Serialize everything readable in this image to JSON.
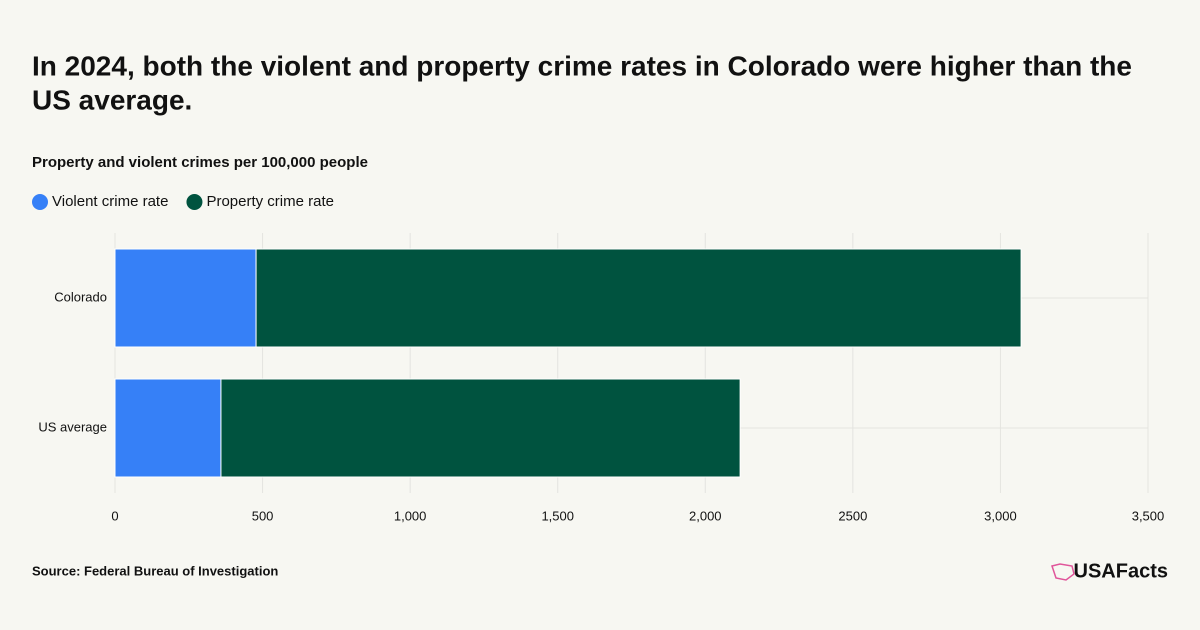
{
  "chart_data": {
    "type": "stacked-barh",
    "title": [
      "In 2024, both the violent and property crime rates in Colorado were higher than the",
      "US average."
    ],
    "subtitle": "Property and violent crimes per 100,000 people",
    "categories": [
      "Colorado",
      "US average"
    ],
    "series": [
      {
        "name": "Violent crime rate",
        "color": "#3680f7",
        "values": [
          478,
          359
        ]
      },
      {
        "name": "Property crime rate",
        "color": "#00533f",
        "values": [
          2592,
          1759
        ]
      }
    ],
    "xlim": [
      0,
      3500
    ],
    "xticks": [
      0,
      500,
      {
        "value": 1000,
        "label": "1,000"
      },
      {
        "value": 1500,
        "label": "1,500"
      },
      {
        "value": 2000,
        "label": "2,000"
      },
      2500,
      {
        "value": 3000,
        "label": "3,000"
      },
      {
        "value": 3500,
        "label": "3,500"
      }
    ],
    "grid": true
  },
  "footer": {
    "source": "Source: Federal Bureau of Investigation",
    "logo": "USAFacts"
  }
}
